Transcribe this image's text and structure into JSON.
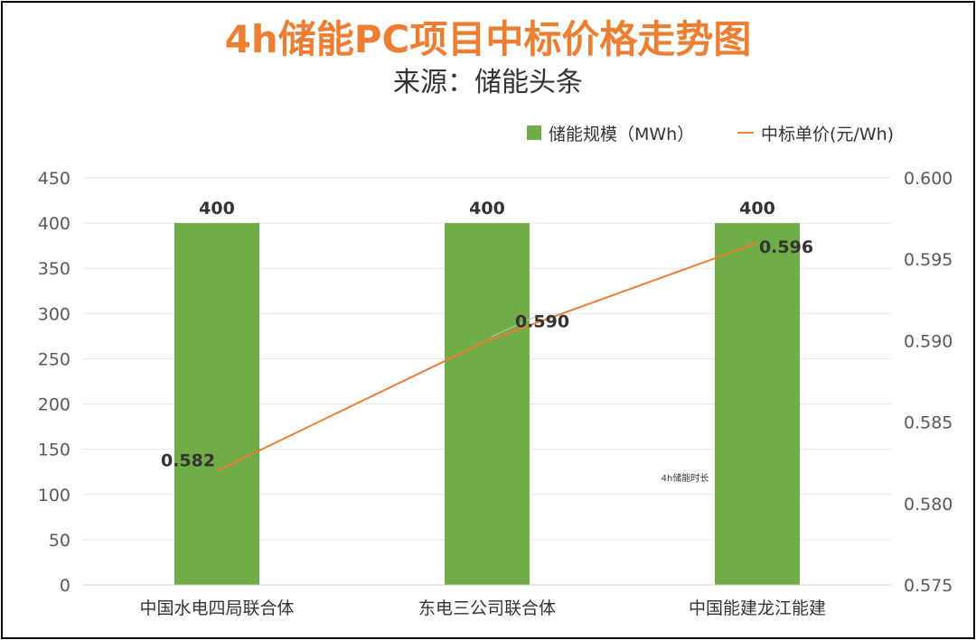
{
  "chart_data": {
    "type": "bar",
    "title": "4h储能PC项目中标价格走势图",
    "subtitle": "来源：储能头条",
    "categories": [
      "中国水电四局联合体",
      "东电三公司联合体",
      "中国能建龙江能建"
    ],
    "series": [
      {
        "name": "储能规模（MWh）",
        "type": "bar",
        "axis": "left",
        "color": "#70AD47",
        "values": [
          400,
          400,
          400
        ],
        "labels": [
          "400",
          "400",
          "400"
        ]
      },
      {
        "name": "中标单价(元/Wh)",
        "type": "line",
        "axis": "right",
        "color": "#ED7D31",
        "values": [
          0.582,
          0.59,
          0.596
        ],
        "labels": [
          "0.582",
          "0.590",
          "0.596"
        ]
      }
    ],
    "y_left": {
      "min": 0,
      "max": 450,
      "ticks": [
        0,
        50,
        100,
        150,
        200,
        250,
        300,
        350,
        400,
        450
      ],
      "tick_labels": [
        "0",
        "50",
        "100",
        "150",
        "200",
        "250",
        "300",
        "350",
        "400",
        "450"
      ]
    },
    "y_right": {
      "min": 0.575,
      "max": 0.6,
      "ticks": [
        0.575,
        0.58,
        0.585,
        0.59,
        0.595,
        0.6
      ],
      "tick_labels": [
        "0.575",
        "0.580",
        "0.585",
        "0.590",
        "0.595",
        "0.600"
      ]
    },
    "grid": true,
    "legend_position": "top-right",
    "annotation": "4h储能时长"
  }
}
